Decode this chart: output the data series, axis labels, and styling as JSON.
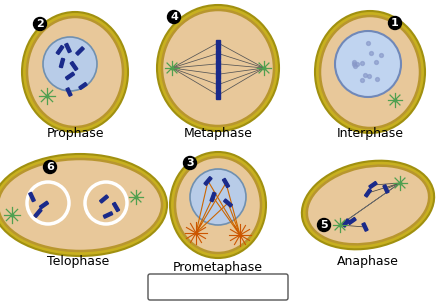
{
  "bg_color": "#ffffff",
  "cell_fill": "#deb887",
  "cell_fill2": "#e8c89a",
  "cell_edge": "#b8962e",
  "cell_edge2": "#c8a840",
  "nucleus_fill": "#b8cce8",
  "nucleus_edge": "#7090b0",
  "chrom_color": "#1a2a8a",
  "cent_color": "#50a050",
  "spin_color": "#444444",
  "orange_cent": "#cc5500",
  "orange_spin": "#cc6600",
  "white_ring": "#ffffff",
  "label_fs": 9,
  "num_fs": 8,
  "phases": [
    "Prophase",
    "Metaphase",
    "Interphase",
    "Telophase",
    "Prometaphase",
    "Anaphase"
  ],
  "numbers": [
    "2",
    "4",
    "1",
    "6",
    "3",
    "5"
  ]
}
